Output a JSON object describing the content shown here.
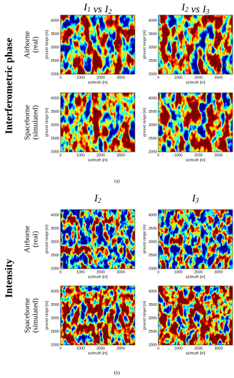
{
  "axes": {
    "xlabel": "azimuth [m]",
    "ylabel": "ground range [m]",
    "xlim": [
      0,
      3700
    ],
    "ylim": [
      2000,
      4200
    ],
    "xticks": [
      0,
      1000,
      2000,
      3000
    ],
    "yticks": [
      2000,
      2500,
      3000,
      3500,
      4000
    ]
  },
  "sections": [
    {
      "title": "Interferometric phase",
      "caption": "(a)",
      "columns": [
        [
          {
            "text": "I",
            "sub": "1"
          },
          {
            "text": "vs"
          },
          {
            "text": "I",
            "sub": "2"
          }
        ],
        [
          {
            "text": "I",
            "sub": "2"
          },
          {
            "text": "vs"
          },
          {
            "text": "I",
            "sub": "3"
          }
        ]
      ],
      "rows": [
        [
          "Airborne",
          "(real)"
        ],
        [
          "Spaceborne",
          "(simulated)"
        ]
      ]
    },
    {
      "title": "Intensity",
      "caption": "(b)",
      "columns": [
        [
          {
            "text": "I",
            "sub": "2"
          }
        ],
        [
          {
            "text": "I",
            "sub": "3"
          }
        ]
      ],
      "rows": [
        [
          "Airborne",
          "(real)"
        ],
        [
          "Spaceborne",
          "(simulated)"
        ]
      ]
    }
  ]
}
